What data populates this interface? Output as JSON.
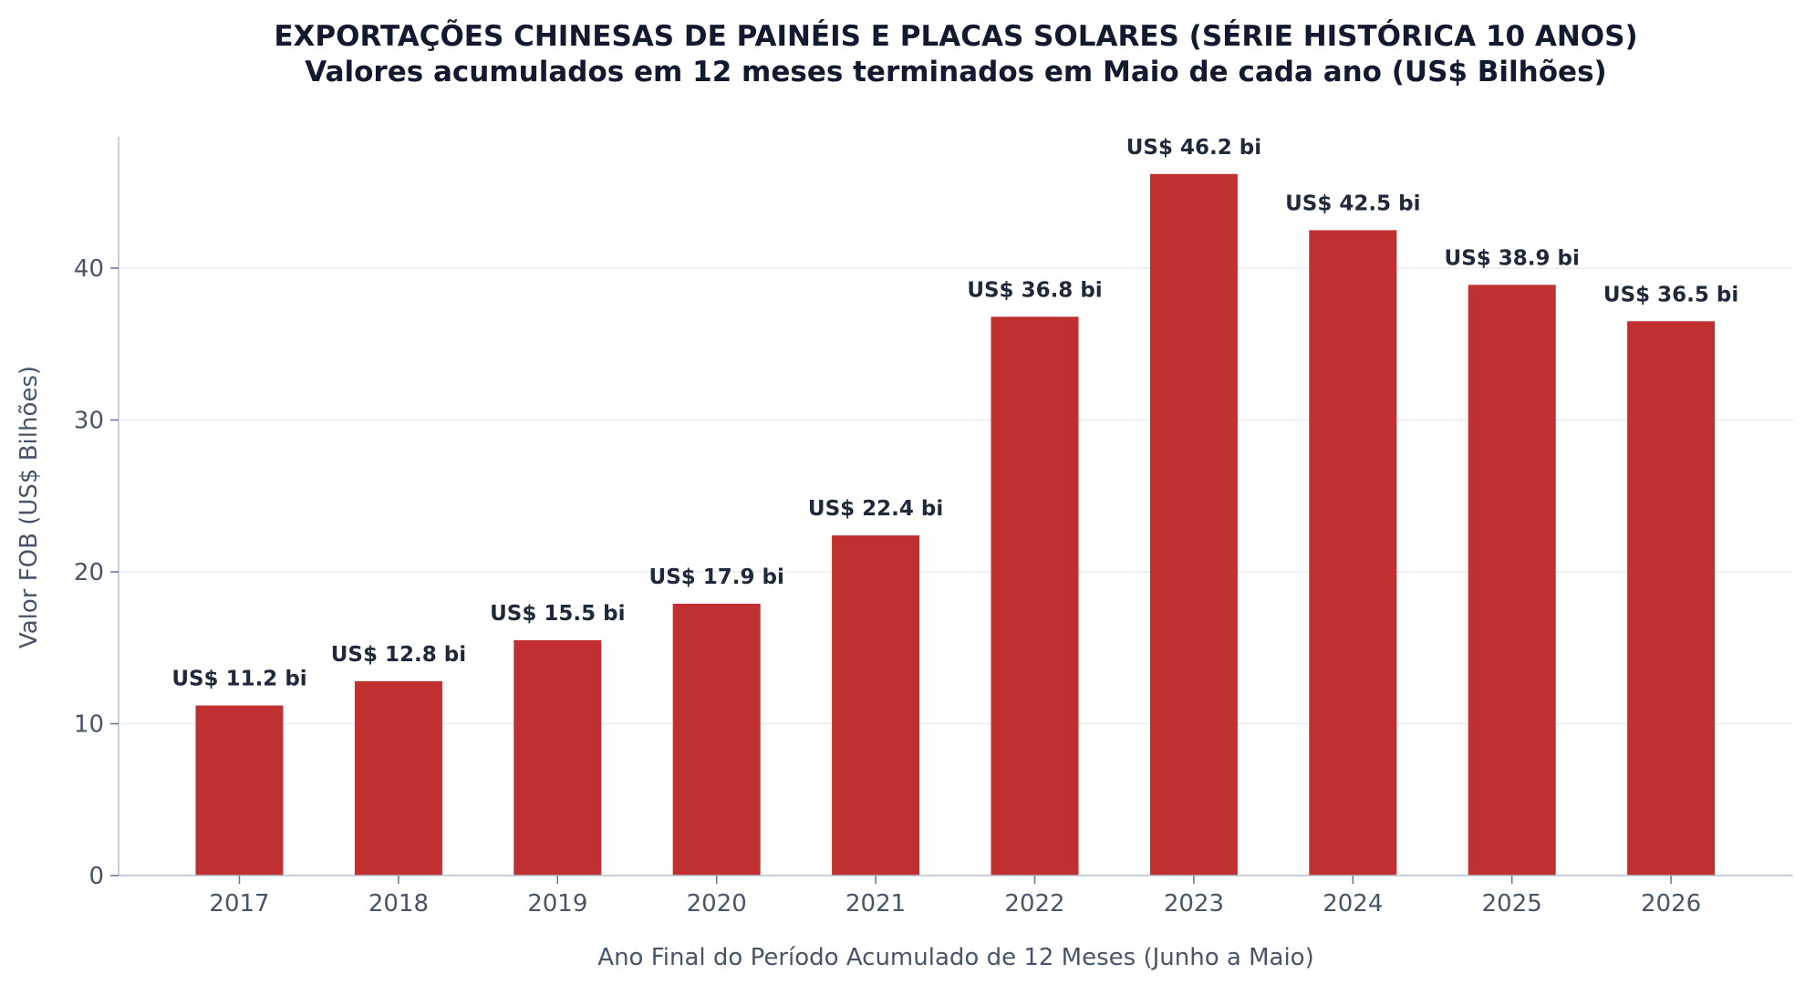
{
  "chart_data": {
    "type": "bar",
    "title": "EXPORTAÇÕES CHINESAS DE PAINÉIS E PLACAS SOLARES (SÉRIE HISTÓRICA 10 ANOS)",
    "subtitle": "Valores acumulados em 12 meses terminados em Maio de cada ano (US$ Bilhões)",
    "xlabel": "Ano Final do Período Acumulado de 12 Meses (Junho a Maio)",
    "ylabel": "Valor FOB (US$ Bilhões)",
    "categories": [
      "2017",
      "2018",
      "2019",
      "2020",
      "2021",
      "2022",
      "2023",
      "2024",
      "2025",
      "2026"
    ],
    "values": [
      11.2,
      12.8,
      15.5,
      17.9,
      22.4,
      36.8,
      46.2,
      42.5,
      38.9,
      36.5
    ],
    "data_labels": [
      "US$ 11.2 bi",
      "US$ 12.8 bi",
      "US$ 15.5 bi",
      "US$ 17.9 bi",
      "US$ 22.4 bi",
      "US$ 36.8 bi",
      "US$ 46.2 bi",
      "US$ 42.5 bi",
      "US$ 38.9 bi",
      "US$ 36.5 bi"
    ],
    "yticks": [
      "0",
      "10",
      "20",
      "30",
      "40"
    ],
    "ylim": [
      0,
      48.5
    ],
    "grid": "horizontal",
    "bar_color": "#c03030"
  }
}
